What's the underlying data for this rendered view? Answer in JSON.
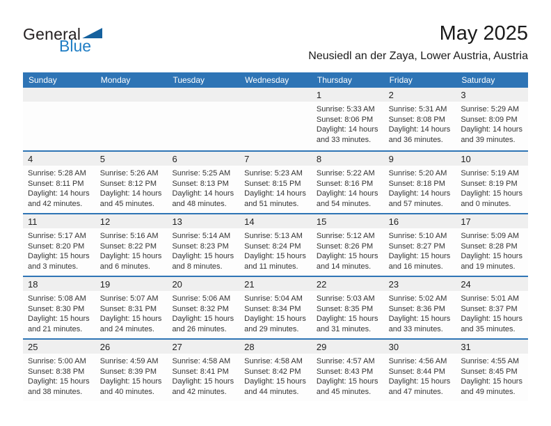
{
  "logo": {
    "general": "General",
    "blue": "Blue"
  },
  "title": "May 2025",
  "subtitle": "Neusiedl an der Zaya, Lower Austria, Austria",
  "weekday_headers": [
    "Sunday",
    "Monday",
    "Tuesday",
    "Wednesday",
    "Thursday",
    "Friday",
    "Saturday"
  ],
  "colors": {
    "header_blue": "#2e74b5",
    "week_separator_blue": "#2e74b5",
    "day_band_gray": "#efefef",
    "logo_text_blue": "#1f7dc4",
    "logo_triangle_blue": "#15619e",
    "weekday_text": "#ffffff",
    "body_text": "#333333"
  },
  "weeks": [
    [
      null,
      null,
      null,
      null,
      {
        "day": "1",
        "sunrise": "Sunrise: 5:33 AM",
        "sunset": "Sunset: 8:06 PM",
        "daylight_line1": "Daylight: 14 hours",
        "daylight_line2": "and 33 minutes."
      },
      {
        "day": "2",
        "sunrise": "Sunrise: 5:31 AM",
        "sunset": "Sunset: 8:08 PM",
        "daylight_line1": "Daylight: 14 hours",
        "daylight_line2": "and 36 minutes."
      },
      {
        "day": "3",
        "sunrise": "Sunrise: 5:29 AM",
        "sunset": "Sunset: 8:09 PM",
        "daylight_line1": "Daylight: 14 hours",
        "daylight_line2": "and 39 minutes."
      }
    ],
    [
      {
        "day": "4",
        "sunrise": "Sunrise: 5:28 AM",
        "sunset": "Sunset: 8:11 PM",
        "daylight_line1": "Daylight: 14 hours",
        "daylight_line2": "and 42 minutes."
      },
      {
        "day": "5",
        "sunrise": "Sunrise: 5:26 AM",
        "sunset": "Sunset: 8:12 PM",
        "daylight_line1": "Daylight: 14 hours",
        "daylight_line2": "and 45 minutes."
      },
      {
        "day": "6",
        "sunrise": "Sunrise: 5:25 AM",
        "sunset": "Sunset: 8:13 PM",
        "daylight_line1": "Daylight: 14 hours",
        "daylight_line2": "and 48 minutes."
      },
      {
        "day": "7",
        "sunrise": "Sunrise: 5:23 AM",
        "sunset": "Sunset: 8:15 PM",
        "daylight_line1": "Daylight: 14 hours",
        "daylight_line2": "and 51 minutes."
      },
      {
        "day": "8",
        "sunrise": "Sunrise: 5:22 AM",
        "sunset": "Sunset: 8:16 PM",
        "daylight_line1": "Daylight: 14 hours",
        "daylight_line2": "and 54 minutes."
      },
      {
        "day": "9",
        "sunrise": "Sunrise: 5:20 AM",
        "sunset": "Sunset: 8:18 PM",
        "daylight_line1": "Daylight: 14 hours",
        "daylight_line2": "and 57 minutes."
      },
      {
        "day": "10",
        "sunrise": "Sunrise: 5:19 AM",
        "sunset": "Sunset: 8:19 PM",
        "daylight_line1": "Daylight: 15 hours",
        "daylight_line2": "and 0 minutes."
      }
    ],
    [
      {
        "day": "11",
        "sunrise": "Sunrise: 5:17 AM",
        "sunset": "Sunset: 8:20 PM",
        "daylight_line1": "Daylight: 15 hours",
        "daylight_line2": "and 3 minutes."
      },
      {
        "day": "12",
        "sunrise": "Sunrise: 5:16 AM",
        "sunset": "Sunset: 8:22 PM",
        "daylight_line1": "Daylight: 15 hours",
        "daylight_line2": "and 6 minutes."
      },
      {
        "day": "13",
        "sunrise": "Sunrise: 5:14 AM",
        "sunset": "Sunset: 8:23 PM",
        "daylight_line1": "Daylight: 15 hours",
        "daylight_line2": "and 8 minutes."
      },
      {
        "day": "14",
        "sunrise": "Sunrise: 5:13 AM",
        "sunset": "Sunset: 8:24 PM",
        "daylight_line1": "Daylight: 15 hours",
        "daylight_line2": "and 11 minutes."
      },
      {
        "day": "15",
        "sunrise": "Sunrise: 5:12 AM",
        "sunset": "Sunset: 8:26 PM",
        "daylight_line1": "Daylight: 15 hours",
        "daylight_line2": "and 14 minutes."
      },
      {
        "day": "16",
        "sunrise": "Sunrise: 5:10 AM",
        "sunset": "Sunset: 8:27 PM",
        "daylight_line1": "Daylight: 15 hours",
        "daylight_line2": "and 16 minutes."
      },
      {
        "day": "17",
        "sunrise": "Sunrise: 5:09 AM",
        "sunset": "Sunset: 8:28 PM",
        "daylight_line1": "Daylight: 15 hours",
        "daylight_line2": "and 19 minutes."
      }
    ],
    [
      {
        "day": "18",
        "sunrise": "Sunrise: 5:08 AM",
        "sunset": "Sunset: 8:30 PM",
        "daylight_line1": "Daylight: 15 hours",
        "daylight_line2": "and 21 minutes."
      },
      {
        "day": "19",
        "sunrise": "Sunrise: 5:07 AM",
        "sunset": "Sunset: 8:31 PM",
        "daylight_line1": "Daylight: 15 hours",
        "daylight_line2": "and 24 minutes."
      },
      {
        "day": "20",
        "sunrise": "Sunrise: 5:06 AM",
        "sunset": "Sunset: 8:32 PM",
        "daylight_line1": "Daylight: 15 hours",
        "daylight_line2": "and 26 minutes."
      },
      {
        "day": "21",
        "sunrise": "Sunrise: 5:04 AM",
        "sunset": "Sunset: 8:34 PM",
        "daylight_line1": "Daylight: 15 hours",
        "daylight_line2": "and 29 minutes."
      },
      {
        "day": "22",
        "sunrise": "Sunrise: 5:03 AM",
        "sunset": "Sunset: 8:35 PM",
        "daylight_line1": "Daylight: 15 hours",
        "daylight_line2": "and 31 minutes."
      },
      {
        "day": "23",
        "sunrise": "Sunrise: 5:02 AM",
        "sunset": "Sunset: 8:36 PM",
        "daylight_line1": "Daylight: 15 hours",
        "daylight_line2": "and 33 minutes."
      },
      {
        "day": "24",
        "sunrise": "Sunrise: 5:01 AM",
        "sunset": "Sunset: 8:37 PM",
        "daylight_line1": "Daylight: 15 hours",
        "daylight_line2": "and 35 minutes."
      }
    ],
    [
      {
        "day": "25",
        "sunrise": "Sunrise: 5:00 AM",
        "sunset": "Sunset: 8:38 PM",
        "daylight_line1": "Daylight: 15 hours",
        "daylight_line2": "and 38 minutes."
      },
      {
        "day": "26",
        "sunrise": "Sunrise: 4:59 AM",
        "sunset": "Sunset: 8:39 PM",
        "daylight_line1": "Daylight: 15 hours",
        "daylight_line2": "and 40 minutes."
      },
      {
        "day": "27",
        "sunrise": "Sunrise: 4:58 AM",
        "sunset": "Sunset: 8:41 PM",
        "daylight_line1": "Daylight: 15 hours",
        "daylight_line2": "and 42 minutes."
      },
      {
        "day": "28",
        "sunrise": "Sunrise: 4:58 AM",
        "sunset": "Sunset: 8:42 PM",
        "daylight_line1": "Daylight: 15 hours",
        "daylight_line2": "and 44 minutes."
      },
      {
        "day": "29",
        "sunrise": "Sunrise: 4:57 AM",
        "sunset": "Sunset: 8:43 PM",
        "daylight_line1": "Daylight: 15 hours",
        "daylight_line2": "and 45 minutes."
      },
      {
        "day": "30",
        "sunrise": "Sunrise: 4:56 AM",
        "sunset": "Sunset: 8:44 PM",
        "daylight_line1": "Daylight: 15 hours",
        "daylight_line2": "and 47 minutes."
      },
      {
        "day": "31",
        "sunrise": "Sunrise: 4:55 AM",
        "sunset": "Sunset: 8:45 PM",
        "daylight_line1": "Daylight: 15 hours",
        "daylight_line2": "and 49 minutes."
      }
    ]
  ]
}
